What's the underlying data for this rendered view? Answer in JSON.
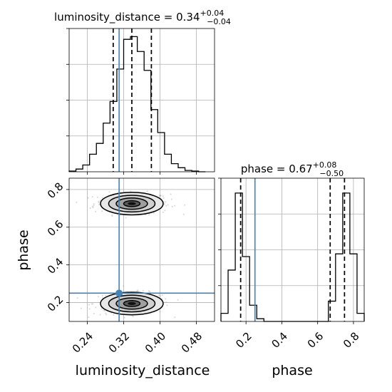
{
  "chart_data": {
    "type": "corner",
    "parameters": [
      "luminosity_distance",
      "phase"
    ],
    "titles": [
      {
        "parameter": "luminosity_distance",
        "prefix": "luminosity_distance = ",
        "median": "0.34",
        "plus": "+0.04",
        "minus": "−0.04"
      },
      {
        "parameter": "phase",
        "prefix": "phase = ",
        "median": "0.67",
        "plus": "+0.08",
        "minus": "−0.50"
      }
    ],
    "xlabels": [
      "luminosity_distance",
      "phase"
    ],
    "ylabel": "phase",
    "injection": {
      "luminosity_distance": 0.31,
      "phase": 0.25
    },
    "injection_color": "#4682b4",
    "grid": true,
    "histograms": [
      {
        "parameter": "luminosity_distance",
        "range": [
          0.2,
          0.52
        ],
        "bin_edges": [
          0.2,
          0.215,
          0.23,
          0.245,
          0.26,
          0.275,
          0.29,
          0.305,
          0.32,
          0.335,
          0.35,
          0.365,
          0.38,
          0.395,
          0.41,
          0.425,
          0.44,
          0.455,
          0.47,
          0.485,
          0.5
        ],
        "counts": [
          0.005,
          0.02,
          0.05,
          0.13,
          0.21,
          0.36,
          0.52,
          0.76,
          0.98,
          1.0,
          0.89,
          0.75,
          0.46,
          0.29,
          0.13,
          0.06,
          0.03,
          0.01,
          0.005,
          0.0
        ],
        "quantiles": [
          0.297,
          0.338,
          0.381
        ]
      },
      {
        "parameter": "phase",
        "range": [
          0.06,
          0.86
        ],
        "bin_edges": [
          0.06,
          0.1,
          0.14,
          0.18,
          0.22,
          0.26,
          0.3,
          0.34,
          0.38,
          0.42,
          0.46,
          0.5,
          0.54,
          0.58,
          0.62,
          0.66,
          0.7,
          0.74,
          0.78,
          0.82,
          0.86
        ],
        "counts": [
          0.06,
          0.38,
          0.95,
          0.48,
          0.12,
          0.02,
          0.0,
          0.0,
          0.0,
          0.0,
          0.0,
          0.0,
          0.0,
          0.0,
          0.0,
          0.15,
          0.5,
          0.95,
          0.5,
          0.06
        ],
        "quantiles": [
          0.17,
          0.67,
          0.75
        ]
      }
    ],
    "joint": {
      "x": "luminosity_distance",
      "y": "phase",
      "xlim": [
        0.2,
        0.52
      ],
      "ylim": [
        0.1,
        0.86
      ],
      "modes": [
        {
          "x_mean": 0.338,
          "y_mean": 0.725,
          "x_sd": 0.03,
          "y_sd": 0.026
        },
        {
          "x_mean": 0.338,
          "y_mean": 0.195,
          "x_sd": 0.03,
          "y_sd": 0.026
        }
      ]
    },
    "ticks": {
      "luminosity_distance": [
        "0.24",
        "0.32",
        "0.40",
        "0.48"
      ],
      "phase": [
        "0.2",
        "0.4",
        "0.6",
        "0.8"
      ]
    }
  }
}
